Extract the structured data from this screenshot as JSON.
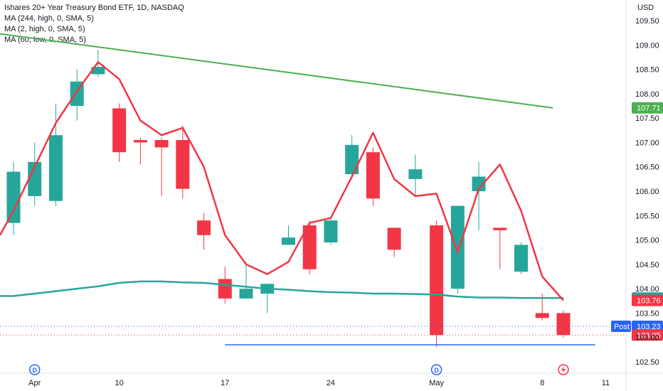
{
  "legend": {
    "title": "Ishares 20+ Year Treasury Bond ETF, 1D, NASDAQ",
    "ma1": "MA (244, high, 0, SMA, 5)",
    "ma2": "MA (2, high, 0, SMA, 5)",
    "ma3": "MA (60, low, 0, SMA, 5)"
  },
  "colors": {
    "up": "#26a69a",
    "down": "#f23645",
    "ma244": "#4caf50",
    "ma2": "#f23645",
    "ma60": "#26a69a",
    "trendline": "#2962ff",
    "post": "#2962ff"
  },
  "chart_data": {
    "type": "candlestick",
    "currency": "USD",
    "y_ticks": [
      "102.50",
      "103.00",
      "103.50",
      "104.00",
      "104.50",
      "105.00",
      "105.50",
      "106.00",
      "106.50",
      "107.00",
      "107.50",
      "108.00",
      "108.50",
      "109.00",
      "109.50"
    ],
    "ylim": [
      102.4,
      109.8
    ],
    "x_ticks": [
      {
        "label": "Apr",
        "i": 1
      },
      {
        "label": "10",
        "i": 5
      },
      {
        "label": "17",
        "i": 10
      },
      {
        "label": "24",
        "i": 15
      },
      {
        "label": "May",
        "i": 20
      },
      {
        "label": "8",
        "i": 25
      },
      {
        "label": "11",
        "i": 28
      }
    ],
    "candles": [
      {
        "o": 105.35,
        "h": 106.6,
        "l": 105.1,
        "c": 106.4
      },
      {
        "o": 105.9,
        "h": 107.0,
        "l": 105.7,
        "c": 106.6
      },
      {
        "o": 105.8,
        "h": 107.8,
        "l": 105.7,
        "c": 107.15
      },
      {
        "o": 107.75,
        "h": 108.5,
        "l": 107.45,
        "c": 108.25
      },
      {
        "o": 108.4,
        "h": 108.9,
        "l": 108.35,
        "c": 108.55
      },
      {
        "o": 107.7,
        "h": 107.8,
        "l": 106.6,
        "c": 106.8
      },
      {
        "o": 107.05,
        "h": 107.1,
        "l": 106.55,
        "c": 107.0
      },
      {
        "o": 107.05,
        "h": 107.1,
        "l": 105.9,
        "c": 106.9
      },
      {
        "o": 107.05,
        "h": 107.35,
        "l": 105.85,
        "c": 106.05
      },
      {
        "o": 105.4,
        "h": 105.55,
        "l": 104.8,
        "c": 105.1
      },
      {
        "o": 104.2,
        "h": 104.45,
        "l": 103.7,
        "c": 103.8
      },
      {
        "o": 103.8,
        "h": 104.55,
        "l": 103.8,
        "c": 104.0
      },
      {
        "o": 103.9,
        "h": 104.1,
        "l": 103.5,
        "c": 104.1
      },
      {
        "o": 104.9,
        "h": 105.3,
        "l": 104.9,
        "c": 105.05
      },
      {
        "o": 105.3,
        "h": 105.4,
        "l": 104.3,
        "c": 104.4
      },
      {
        "o": 104.95,
        "h": 105.45,
        "l": 104.9,
        "c": 105.4
      },
      {
        "o": 106.35,
        "h": 107.15,
        "l": 106.3,
        "c": 106.95
      },
      {
        "o": 106.8,
        "h": 106.9,
        "l": 105.7,
        "c": 105.85
      },
      {
        "o": 105.25,
        "h": 105.25,
        "l": 104.65,
        "c": 104.8
      },
      {
        "o": 106.25,
        "h": 106.75,
        "l": 105.9,
        "c": 106.45
      },
      {
        "o": 105.3,
        "h": 105.4,
        "l": 102.8,
        "c": 103.05
      },
      {
        "o": 104.0,
        "h": 105.7,
        "l": 103.9,
        "c": 105.7
      },
      {
        "o": 106.0,
        "h": 106.6,
        "l": 105.2,
        "c": 106.3
      },
      {
        "o": 105.25,
        "h": 105.25,
        "l": 104.4,
        "c": 105.2
      },
      {
        "o": 104.35,
        "h": 104.95,
        "l": 104.3,
        "c": 104.9
      },
      {
        "o": 103.5,
        "h": 103.9,
        "l": 103.35,
        "c": 103.4
      },
      {
        "o": 103.5,
        "h": 103.55,
        "l": 103.0,
        "c": 103.05
      }
    ],
    "ma2_values": [
      105.6,
      106.5,
      107.4,
      108.05,
      108.65,
      108.3,
      107.45,
      107.15,
      107.3,
      106.5,
      105.1,
      104.5,
      104.3,
      104.55,
      105.35,
      105.45,
      106.3,
      107.2,
      106.25,
      105.9,
      105.95,
      104.75,
      106.05,
      106.55,
      105.6,
      104.25,
      103.76
    ],
    "ma244": {
      "i_start": -1,
      "i_end": 25.5,
      "y_start": 109.25,
      "y_end": 107.71
    },
    "ma60_values": [
      103.85,
      103.9,
      103.95,
      104.0,
      104.05,
      104.12,
      104.15,
      104.15,
      104.13,
      104.12,
      104.08,
      104.04,
      104.0,
      103.98,
      103.95,
      103.93,
      103.92,
      103.9,
      103.9,
      103.89,
      103.88,
      103.84,
      103.82,
      103.82,
      103.81,
      103.81,
      103.81
    ],
    "trendline": {
      "i_start": 10,
      "i_end": 27.5,
      "y": 102.85
    },
    "post_price": 103.23,
    "last_close": 103.05,
    "tags": {
      "ma244": "107.71",
      "ma60": "103.81",
      "ma2": "103.76",
      "post_label": "Post",
      "post": "103.23",
      "close": "103.05"
    },
    "dividend_marker": "D",
    "dividend_indices": [
      1,
      20
    ]
  }
}
